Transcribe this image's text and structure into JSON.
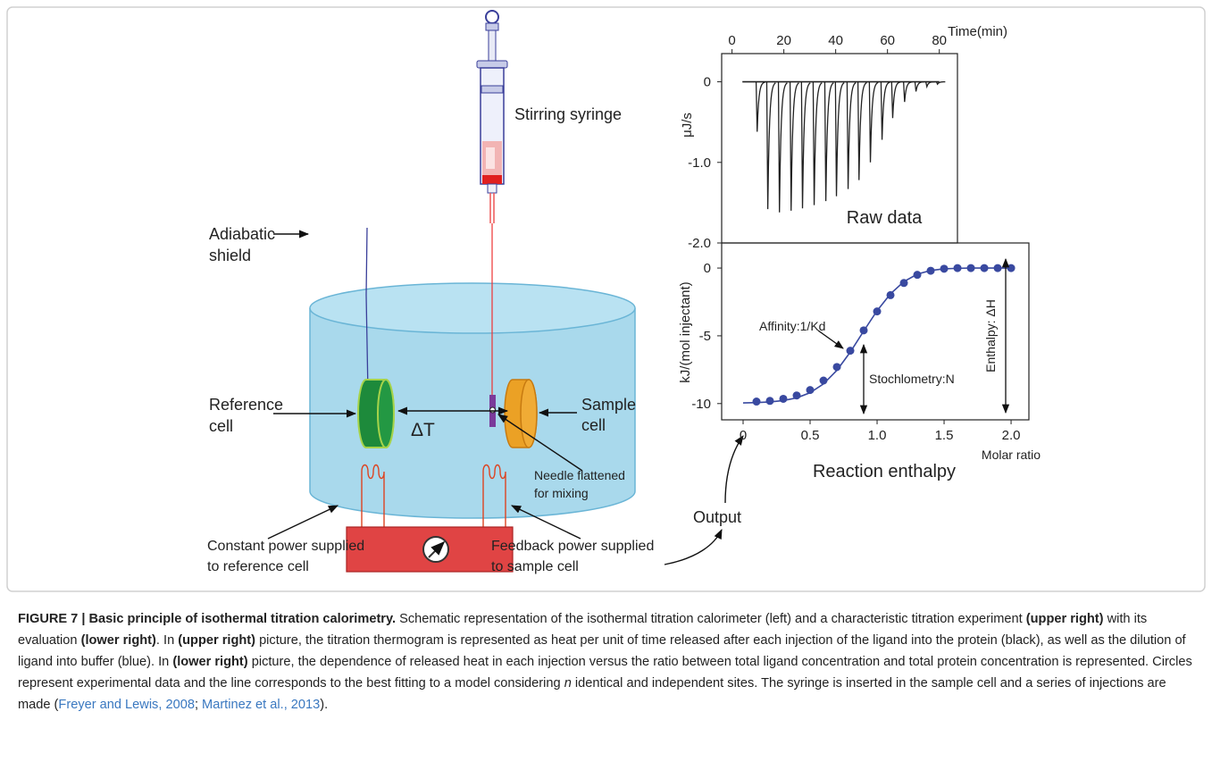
{
  "diagram": {
    "syringe_label": "Stirring syringe",
    "shield_label": [
      "Adiabatic",
      "shield"
    ],
    "reference_label": [
      "Reference",
      "cell"
    ],
    "delta_t": "ΔT",
    "sample_label": [
      "Sample",
      "cell"
    ],
    "needle_label": [
      "Needle flattened",
      "for mixing"
    ],
    "constant_power_label": [
      "Constant power supplied",
      "to reference cell"
    ],
    "feedback_power_label": [
      "Feedback power supplied",
      "to sample cell"
    ],
    "output_label": "Output"
  },
  "chart_data": [
    {
      "type": "line",
      "title": "Raw data",
      "x_label": "Time(min)",
      "y_label": "μJ/s",
      "x": [
        9.7,
        13.8,
        18.3,
        22.8,
        27.2,
        31.7,
        36.2,
        40.3,
        44.8,
        49,
        53.4,
        57.9,
        62,
        66.6,
        71,
        75.2,
        79.3
      ],
      "values": [
        -0.62,
        -1.58,
        -1.62,
        -1.6,
        -1.57,
        -1.53,
        -1.48,
        -1.42,
        -1.33,
        -1.22,
        -1.0,
        -0.72,
        -0.45,
        -0.25,
        -0.12,
        -0.06,
        -0.03
      ],
      "color": "#222222",
      "xlim": [
        -4,
        87
      ],
      "ylim": [
        -2.0,
        0.35
      ],
      "xticks": [
        0,
        20,
        40,
        60,
        80
      ],
      "yticks": [
        0,
        {
          "value": -1,
          "label": "-1.0"
        },
        {
          "value": -2,
          "label": "-2.0"
        }
      ]
    },
    {
      "type": "scatter",
      "title": "Reaction enthalpy",
      "x_label": "Molar ratio",
      "y_label": "kJ/(mol injectant)",
      "x": [
        0.1,
        0.2,
        0.3,
        0.4,
        0.5,
        0.6,
        0.7,
        0.8,
        0.9,
        1.0,
        1.1,
        1.2,
        1.3,
        1.4,
        1.5,
        1.6,
        1.7,
        1.8,
        1.9,
        2.0
      ],
      "values": [
        -9.85,
        -9.8,
        -9.65,
        -9.4,
        -9.0,
        -8.3,
        -7.3,
        -6.1,
        -4.6,
        -3.2,
        -2.0,
        -1.1,
        -0.5,
        -0.2,
        -0.05,
        0,
        0,
        0,
        0,
        0
      ],
      "color": "#3949a0",
      "fit": {
        "x": [
          0,
          0.1,
          0.2,
          0.3,
          0.4,
          0.5,
          0.6,
          0.7,
          0.8,
          0.9,
          1.0,
          1.1,
          1.2,
          1.3,
          1.4,
          1.5,
          1.6,
          1.7,
          1.8,
          1.9,
          2.0
        ],
        "values": [
          -9.95,
          -9.93,
          -9.88,
          -9.78,
          -9.58,
          -9.2,
          -8.55,
          -7.55,
          -6.2,
          -4.65,
          -3.15,
          -1.9,
          -1.0,
          -0.45,
          -0.18,
          -0.06,
          -0.02,
          0,
          0,
          0,
          0
        ]
      },
      "xlim": [
        -0.16,
        2.133
      ],
      "ylim": [
        -11.2,
        1.85
      ],
      "xticks": [
        0,
        0.5,
        {
          "value": 1,
          "label": "1.0"
        },
        1.5,
        {
          "value": 2,
          "label": "2.0"
        }
      ],
      "yticks": [
        0,
        -5,
        -10
      ],
      "annotations": [
        "Affinity:1/Kd",
        "Stochlometry:N",
        "Enthalpy: ΔH"
      ]
    }
  ],
  "caption": {
    "parts": [
      "FIGURE 7 | Basic principle of isothermal titration calorimetry.",
      " Schematic representation of the isothermal titration calorimeter (left) and a characteristic titration experiment ",
      "(upper right)",
      " with its evaluation ",
      "(lower right)",
      ". In ",
      "(upper right)",
      " picture, the titration thermogram is represented as heat per unit of time released after each injection of the ligand into the protein (black), as well as the dilution of ligand into buffer (blue). In ",
      "(lower right)",
      " picture, the dependence of released heat in each injection versus the ratio between total ligand concentration and total protein concentration is represented. Circles represent experimental data and the line corresponds to the best fitting to a model considering ",
      "n",
      " identical and independent sites. The syringe is inserted in the sample cell and a series of injections are made (",
      "Freyer and Lewis, 2008",
      "; ",
      "Martinez et al., 2013",
      ")."
    ]
  }
}
